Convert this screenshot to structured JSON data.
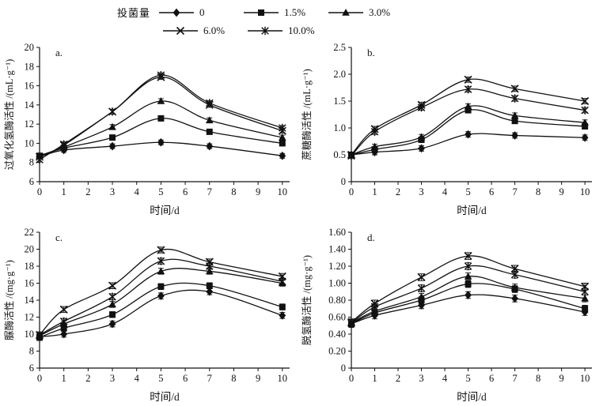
{
  "figure": {
    "background": "#ffffff",
    "ink_color": "#111111"
  },
  "legend": {
    "title": "投菌量",
    "items": [
      {
        "label": "0",
        "marker": "diamond"
      },
      {
        "label": "1.5%",
        "marker": "square"
      },
      {
        "label": "3.0%",
        "marker": "triangle"
      },
      {
        "label": "6.0%",
        "marker": "cross"
      },
      {
        "label": "10.0%",
        "marker": "asterisk"
      }
    ]
  },
  "chart_data": [
    {
      "id": "a",
      "panel": "a.",
      "type": "line",
      "x": [
        0,
        1,
        3,
        5,
        7,
        10
      ],
      "xticks": [
        0,
        1,
        2,
        3,
        4,
        5,
        6,
        7,
        8,
        9,
        10
      ],
      "xlabel": "时间/d",
      "ylabel": "过氧化氢酶活性 /(mL·g⁻¹)",
      "ylim": [
        6,
        20
      ],
      "ytick_labels": [
        "6",
        "8",
        "10",
        "12",
        "14",
        "16",
        "18",
        "20"
      ],
      "yerr": 0.25,
      "grid": false,
      "series": [
        {
          "name": "0",
          "marker": "diamond",
          "values": [
            8.6,
            9.3,
            9.7,
            10.1,
            9.7,
            8.7
          ]
        },
        {
          "name": "1.5%",
          "marker": "square",
          "values": [
            8.7,
            9.5,
            10.6,
            12.6,
            11.2,
            10.0
          ]
        },
        {
          "name": "3.0%",
          "marker": "triangle",
          "values": [
            8.7,
            9.6,
            11.7,
            14.4,
            12.4,
            10.6
          ]
        },
        {
          "name": "6.0%",
          "marker": "cross",
          "values": [
            8.6,
            9.8,
            13.3,
            16.9,
            14.0,
            11.3
          ]
        },
        {
          "name": "10.0%",
          "marker": "asterisk",
          "values": [
            8.3,
            9.9,
            13.3,
            17.1,
            14.2,
            11.6
          ]
        }
      ]
    },
    {
      "id": "b",
      "panel": "b.",
      "type": "line",
      "x": [
        0,
        1,
        3,
        5,
        7,
        10
      ],
      "xticks": [
        0,
        1,
        2,
        3,
        4,
        5,
        6,
        7,
        8,
        9,
        10
      ],
      "xlabel": "时间/d",
      "ylabel": "蔗糖酶活性 /(mL·g⁻¹)",
      "ylim": [
        0,
        2.5
      ],
      "ytick_labels": [
        "0",
        "0.5",
        "1.0",
        "1.5",
        "2.0",
        "2.5"
      ],
      "yerr": 0.05,
      "grid": false,
      "series": [
        {
          "name": "0",
          "marker": "diamond",
          "values": [
            0.5,
            0.55,
            0.62,
            0.88,
            0.86,
            0.82
          ]
        },
        {
          "name": "1.5%",
          "marker": "square",
          "values": [
            0.5,
            0.6,
            0.78,
            1.33,
            1.13,
            1.03
          ]
        },
        {
          "name": "3.0%",
          "marker": "triangle",
          "values": [
            0.5,
            0.65,
            0.83,
            1.4,
            1.23,
            1.1
          ]
        },
        {
          "name": "6.0%",
          "marker": "cross",
          "values": [
            0.5,
            0.98,
            1.43,
            1.9,
            1.73,
            1.5
          ]
        },
        {
          "name": "10.0%",
          "marker": "asterisk",
          "values": [
            0.48,
            0.93,
            1.38,
            1.72,
            1.55,
            1.33
          ]
        }
      ]
    },
    {
      "id": "c",
      "panel": "c.",
      "type": "line",
      "x": [
        0,
        1,
        3,
        5,
        7,
        10
      ],
      "xticks": [
        0,
        1,
        2,
        3,
        4,
        5,
        6,
        7,
        8,
        9,
        10
      ],
      "xlabel": "时间/d",
      "ylabel": "脲酶活性 /(mg·g⁻¹)",
      "ylim": [
        6,
        22
      ],
      "ytick_labels": [
        "6",
        "8",
        "10",
        "12",
        "14",
        "16",
        "18",
        "20",
        "22"
      ],
      "yerr": 0.35,
      "grid": false,
      "series": [
        {
          "name": "0",
          "marker": "diamond",
          "values": [
            9.7,
            10.0,
            11.2,
            14.5,
            15.0,
            12.2
          ]
        },
        {
          "name": "1.5%",
          "marker": "square",
          "values": [
            9.6,
            10.7,
            12.3,
            15.6,
            15.7,
            13.2
          ]
        },
        {
          "name": "3.0%",
          "marker": "triangle",
          "values": [
            9.8,
            11.2,
            13.5,
            17.4,
            17.4,
            16.0
          ]
        },
        {
          "name": "6.0%",
          "marker": "cross",
          "values": [
            9.9,
            12.9,
            15.7,
            19.9,
            18.5,
            16.8
          ]
        },
        {
          "name": "10.0%",
          "marker": "asterisk",
          "values": [
            9.9,
            11.5,
            14.4,
            18.6,
            18.0,
            16.2
          ]
        }
      ]
    },
    {
      "id": "d",
      "panel": "d.",
      "type": "line",
      "x": [
        0,
        1,
        3,
        5,
        7,
        10
      ],
      "xticks": [
        0,
        1,
        2,
        3,
        4,
        5,
        6,
        7,
        8,
        9,
        10
      ],
      "xlabel": "时间/d",
      "ylabel": "脱氢酶活性 /(mg·g⁻¹)",
      "ylim": [
        0,
        1.6
      ],
      "ytick_labels": [
        "0",
        "0.20",
        "0.40",
        "0.60",
        "0.80",
        "1.00",
        "1.20",
        "1.40",
        "1.60"
      ],
      "yerr": 0.04,
      "grid": false,
      "series": [
        {
          "name": "0",
          "marker": "diamond",
          "values": [
            0.52,
            0.62,
            0.74,
            0.86,
            0.82,
            0.66
          ]
        },
        {
          "name": "1.5%",
          "marker": "square",
          "values": [
            0.52,
            0.65,
            0.8,
            0.99,
            0.93,
            0.7
          ]
        },
        {
          "name": "3.0%",
          "marker": "triangle",
          "values": [
            0.53,
            0.67,
            0.84,
            1.08,
            0.95,
            0.82
          ]
        },
        {
          "name": "6.0%",
          "marker": "cross",
          "values": [
            0.54,
            0.76,
            1.07,
            1.32,
            1.17,
            0.96
          ]
        },
        {
          "name": "10.0%",
          "marker": "asterisk",
          "values": [
            0.53,
            0.72,
            0.94,
            1.2,
            1.1,
            0.9
          ]
        }
      ]
    }
  ]
}
